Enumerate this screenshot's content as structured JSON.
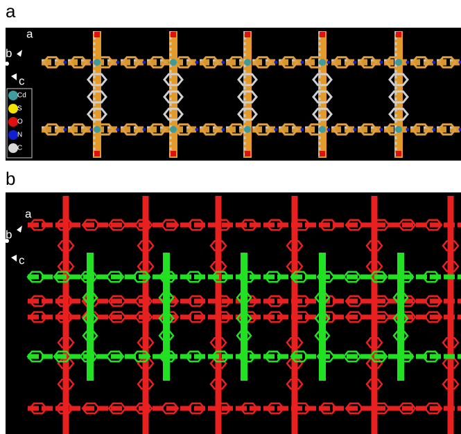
{
  "panels": [
    {
      "label": "a",
      "axes": [
        "a",
        "b",
        "c"
      ],
      "legend": [
        {
          "label": "Cd",
          "color": "#3f9c9c"
        },
        {
          "label": "S",
          "color": "#f2e200"
        },
        {
          "label": "O",
          "color": "#e01010"
        },
        {
          "label": "N",
          "color": "#1020d0"
        },
        {
          "label": "C",
          "color": "#d8d8d8"
        }
      ]
    },
    {
      "label": "b",
      "axes": [
        "a",
        "b",
        "c"
      ]
    }
  ]
}
